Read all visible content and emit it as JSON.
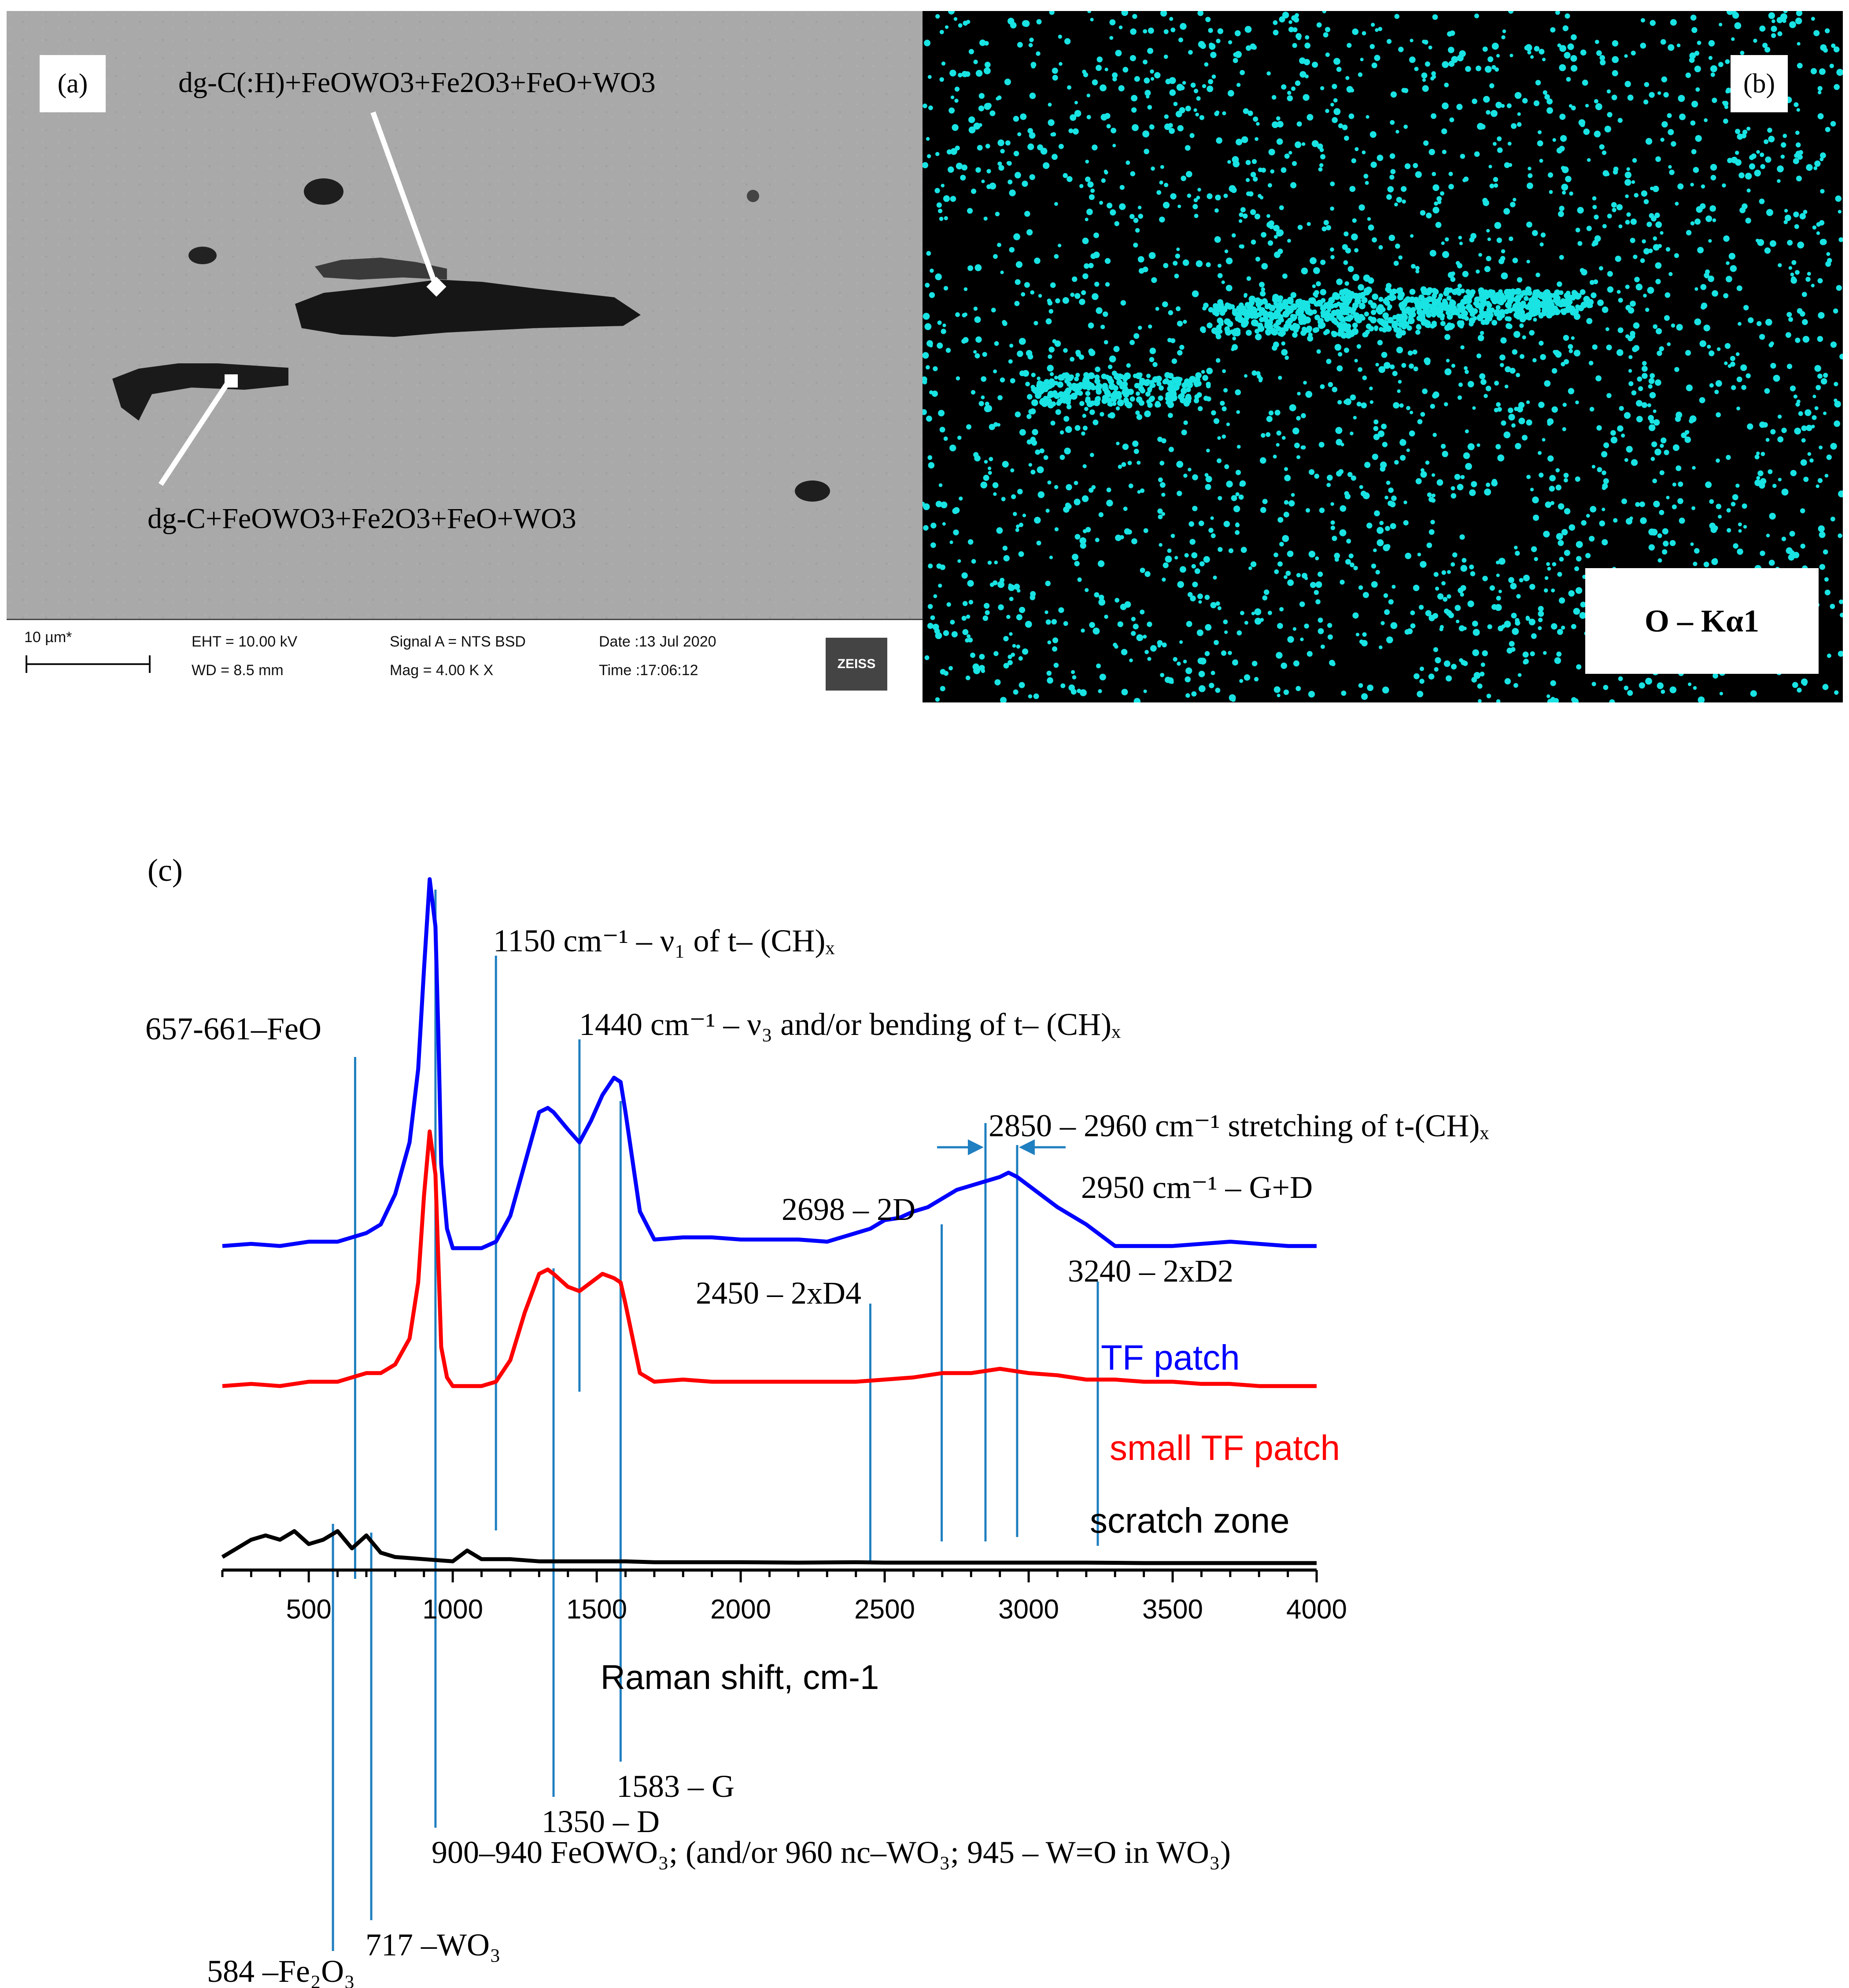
{
  "panel_a": {
    "label": "(a)",
    "callout_top": "dg-C(:H)+FeOWO3+Fe2O3+FeO+WO3",
    "callout_bottom": "dg-C+FeOWO3+Fe2O3+FeO+WO3",
    "databar": {
      "scale": "10 µm*",
      "eht": "EHT = 10.00 kV",
      "wd": "WD =  8.5 mm",
      "signal": "Signal A = NTS BSD",
      "mag": "Mag =   4.00 K X",
      "date": "Date :13 Jul 2020",
      "time": "Time :17:06:12",
      "logo": "ZEISS"
    }
  },
  "panel_b": {
    "label": "(b)",
    "map_label": "O – Kα1",
    "dot_color": "#19e3e3"
  },
  "chart_data": {
    "panel_label": "(c)",
    "type": "line",
    "xlabel": "Raman shift, cm-1",
    "xlim": [
      200,
      4000
    ],
    "xticks": [
      500,
      1000,
      1500,
      2000,
      2500,
      3000,
      3500,
      4000
    ],
    "series": [
      {
        "name": "TF patch",
        "color": "#0000ff",
        "x": [
          200,
          300,
          400,
          500,
          600,
          700,
          750,
          800,
          850,
          880,
          900,
          920,
          940,
          950,
          960,
          980,
          1000,
          1050,
          1100,
          1150,
          1200,
          1250,
          1300,
          1330,
          1350,
          1400,
          1440,
          1480,
          1520,
          1560,
          1583,
          1600,
          1650,
          1700,
          1800,
          1900,
          2000,
          2100,
          2200,
          2300,
          2400,
          2450,
          2500,
          2550,
          2600,
          2650,
          2700,
          2750,
          2800,
          2850,
          2900,
          2930,
          2960,
          3000,
          3100,
          3200,
          3300,
          3400,
          3500,
          3600,
          3700,
          3800,
          3900,
          4000
        ],
        "y": [
          21,
          21.5,
          21,
          22,
          22,
          24,
          26,
          33,
          45,
          62,
          85,
          106,
          95,
          70,
          40,
          25,
          20.5,
          20.5,
          20.5,
          22,
          28,
          40,
          52,
          53,
          52,
          48,
          45,
          50,
          56,
          60,
          59,
          52,
          29,
          22.5,
          23,
          23,
          22.5,
          22.5,
          22.5,
          22,
          24,
          25,
          27,
          27.5,
          29,
          30,
          32,
          34,
          35,
          36,
          37,
          38,
          37,
          35,
          30,
          26,
          21,
          21,
          21,
          21.5,
          22,
          21.5,
          21,
          21
        ]
      },
      {
        "name": "small TF patch",
        "color": "#ff0000",
        "x": [
          200,
          300,
          400,
          500,
          600,
          700,
          750,
          800,
          850,
          880,
          900,
          920,
          940,
          950,
          960,
          980,
          1000,
          1050,
          1100,
          1150,
          1200,
          1250,
          1300,
          1330,
          1350,
          1400,
          1440,
          1480,
          1520,
          1560,
          1583,
          1600,
          1650,
          1700,
          1800,
          1900,
          2000,
          2100,
          2200,
          2300,
          2400,
          2500,
          2600,
          2700,
          2800,
          2900,
          3000,
          3100,
          3200,
          3300,
          3400,
          3500,
          3600,
          3700,
          3800,
          3900,
          4000
        ],
        "y": [
          11,
          11.5,
          11,
          12,
          12,
          14,
          14,
          16,
          22,
          35,
          55,
          70,
          60,
          40,
          20,
          13,
          11,
          11,
          11,
          12,
          17,
          28,
          37,
          38,
          37,
          34,
          33,
          35,
          37,
          36,
          35,
          30,
          14,
          12,
          12.5,
          12,
          12,
          12,
          12,
          12,
          12,
          12.5,
          13,
          14,
          14,
          15,
          14,
          13.5,
          12.5,
          12.5,
          12,
          12,
          11.5,
          11.5,
          11,
          11,
          11
        ]
      },
      {
        "name": "scratch zone",
        "color": "#000000",
        "x": [
          200,
          250,
          300,
          350,
          400,
          450,
          500,
          550,
          600,
          650,
          700,
          750,
          800,
          900,
          1000,
          1050,
          1100,
          1200,
          1300,
          1400,
          1500,
          1600,
          1700,
          1800,
          2000,
          2200,
          2400,
          2500,
          2600,
          2800,
          3000,
          3200,
          3400,
          3600,
          3800,
          4000
        ],
        "y": [
          2,
          4,
          6,
          7,
          6,
          8,
          5,
          6,
          8,
          4,
          7,
          3,
          2,
          1.5,
          1,
          3.5,
          1.5,
          1.5,
          1,
          1,
          1,
          1,
          0.8,
          0.8,
          0.8,
          0.7,
          0.8,
          0.7,
          0.7,
          0.7,
          0.7,
          0.7,
          0.6,
          0.6,
          0.6,
          0.6
        ]
      }
    ],
    "peak_lines": [
      {
        "x": 661,
        "text": "657-661–FeO"
      },
      {
        "x": 1150,
        "text": "1150 cm⁻¹ – ν₁ of t– (CH)ₓ"
      },
      {
        "x": 1440,
        "text": "1440 cm⁻¹ – ν₃ and/or bending of t– (CH)ₓ"
      },
      {
        "x": 2850,
        "text": "2850 – 2960 cm⁻¹ stretching of t-(CH)ₓ"
      },
      {
        "x": 2960,
        "text": ""
      },
      {
        "x": 2950,
        "text": "2950 cm⁻¹ – G+D"
      },
      {
        "x": 2698,
        "text": "2698 – 2D"
      },
      {
        "x": 2450,
        "text": "2450 – 2xD4"
      },
      {
        "x": 3240,
        "text": "3240 – 2xD2"
      },
      {
        "x": 1583,
        "text": "1583 – G"
      },
      {
        "x": 1350,
        "text": "1350 – D"
      },
      {
        "x": 940,
        "text": "900–940 FeOWO₃; (and/or 960 nc–WO₃; 945 – W=O in WO₃)"
      },
      {
        "x": 717,
        "text": "717 –WO₃"
      },
      {
        "x": 584,
        "text": "584 –Fe₂O₃"
      }
    ],
    "annotation_color": "#1f7fc0"
  }
}
